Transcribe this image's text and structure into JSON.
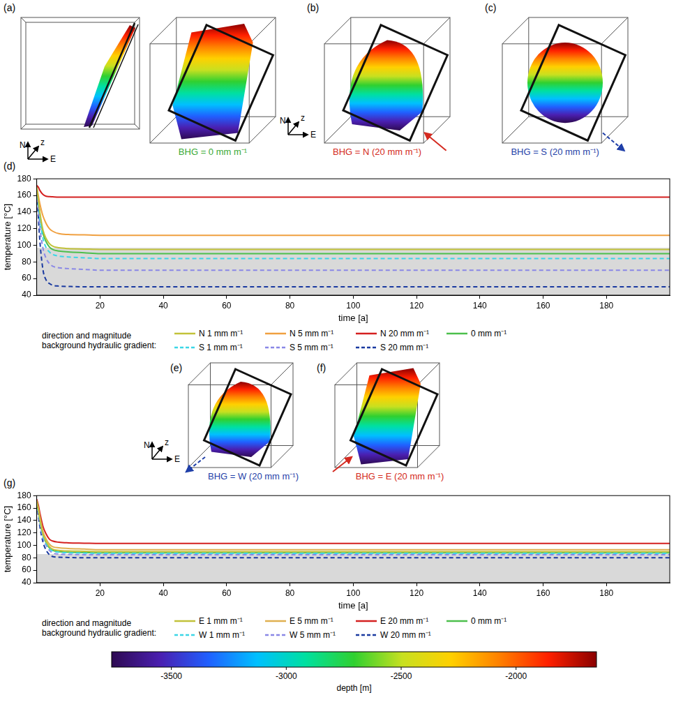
{
  "chart_data": [
    {
      "type": "line",
      "letter": "(d)",
      "x_label": "time [a]",
      "y_label": "temperature [°C]",
      "xlim": [
        0,
        200
      ],
      "xticks": [
        20,
        40,
        60,
        80,
        100,
        120,
        140,
        160,
        180
      ],
      "ylim": [
        40,
        180
      ],
      "yticks": [
        40,
        60,
        80,
        100,
        120,
        140,
        160,
        180
      ],
      "grid": false,
      "legend": "bottom",
      "legend_title": "direction and magnitude background hydraulic gradient:",
      "band": [
        40,
        97
      ],
      "band_color": "#d9d9d9",
      "x": [
        0,
        0.5,
        1,
        2,
        3,
        4,
        5,
        7,
        10,
        15,
        20,
        40,
        60,
        80,
        100,
        120,
        140,
        160,
        180,
        200
      ],
      "series": [
        {
          "name": "N 1 mm m⁻¹",
          "color": "#c2c23a",
          "line_style": "solid",
          "values": [
            170,
            155,
            140,
            118,
            108,
            102,
            99,
            97,
            96,
            95.5,
            95,
            95,
            95,
            95,
            95,
            95,
            95,
            95,
            95,
            95
          ]
        },
        {
          "name": "N 5 mm m⁻¹",
          "color": "#f0a040",
          "line_style": "solid",
          "values": [
            170,
            160,
            150,
            135,
            126,
            120,
            117,
            114,
            113,
            112.5,
            112,
            112,
            112,
            112,
            112,
            112,
            112,
            112,
            112,
            112
          ]
        },
        {
          "name": "N 20 mm m⁻¹",
          "color": "#d42020",
          "line_style": "solid",
          "values": [
            172,
            170,
            166,
            161,
            159,
            158.5,
            158.3,
            158,
            158,
            158,
            158,
            158,
            158,
            158,
            158,
            158,
            158,
            158,
            158,
            158
          ]
        },
        {
          "name": "S 1 mm m⁻¹",
          "color": "#3cd6e6",
          "line_style": "dashed",
          "values": [
            168,
            150,
            132,
            108,
            97,
            92,
            89,
            87,
            86,
            85,
            84,
            84,
            84,
            84,
            84,
            84,
            84,
            84,
            84,
            84
          ]
        },
        {
          "name": "S 5 mm m⁻¹",
          "color": "#8a88e6",
          "line_style": "dashed",
          "values": [
            165,
            145,
            122,
            96,
            84,
            78,
            75,
            73,
            72,
            71,
            70,
            70,
            70,
            70,
            70,
            70,
            70,
            70,
            70,
            70
          ]
        },
        {
          "name": "S 20 mm m⁻¹",
          "color": "#1a3aa0",
          "line_style": "dashed",
          "values": [
            162,
            135,
            105,
            70,
            58,
            54,
            52,
            51,
            50.5,
            50,
            50,
            50,
            50,
            50,
            50,
            50,
            50,
            50,
            50,
            50
          ]
        },
        {
          "name": "0 mm m⁻¹",
          "color": "#4cbf4c",
          "line_style": "solid",
          "values": [
            170,
            153,
            137,
            114,
            104,
            98,
            95,
            93,
            92,
            91,
            90,
            90,
            90,
            90,
            90,
            90,
            90,
            90,
            90,
            90
          ]
        }
      ]
    },
    {
      "type": "line",
      "letter": "(g)",
      "x_label": "time [a]",
      "y_label": "temperature [°C]",
      "xlim": [
        0,
        200
      ],
      "xticks": [
        20,
        40,
        60,
        80,
        100,
        120,
        140,
        160,
        180
      ],
      "ylim": [
        40,
        180
      ],
      "yticks": [
        40,
        60,
        80,
        100,
        120,
        140,
        160,
        180
      ],
      "grid": false,
      "legend": "bottom",
      "legend_title": "direction and magnitude background hydraulic gradient:",
      "band": [
        40,
        86
      ],
      "band_color": "#d9d9d9",
      "x": [
        0,
        0.5,
        1,
        2,
        3,
        4,
        5,
        7,
        10,
        15,
        20,
        40,
        60,
        80,
        100,
        120,
        140,
        160,
        180,
        200
      ],
      "series": [
        {
          "name": "E 1 mm m⁻¹",
          "color": "#c2c23a",
          "line_style": "solid",
          "values": [
            171,
            158,
            142,
            118,
            106,
            98,
            94,
            92,
            91,
            90.5,
            90,
            90,
            90,
            90,
            90,
            90,
            90,
            90,
            90,
            90
          ]
        },
        {
          "name": "E 5 mm m⁻¹",
          "color": "#e0b050",
          "line_style": "solid",
          "values": [
            172,
            160,
            146,
            122,
            110,
            102,
            98,
            96,
            95,
            94,
            93,
            93,
            93,
            93,
            93,
            93,
            93,
            93,
            93,
            93
          ]
        },
        {
          "name": "E 20 mm m⁻¹",
          "color": "#d42020",
          "line_style": "solid",
          "values": [
            174,
            165,
            152,
            130,
            118,
            110,
            107,
            105,
            104,
            103.5,
            103,
            103,
            103,
            103,
            103,
            103,
            103,
            103,
            103,
            103
          ]
        },
        {
          "name": "W 1 mm m⁻¹",
          "color": "#3cd6e6",
          "line_style": "dashed",
          "values": [
            170,
            155,
            139,
            115,
            103,
            95,
            91,
            89,
            88,
            87.5,
            87,
            87,
            87,
            87,
            87,
            87,
            87,
            87,
            87,
            87
          ]
        },
        {
          "name": "W 5 mm m⁻¹",
          "color": "#8a88e6",
          "line_style": "dashed",
          "values": [
            169,
            153,
            136,
            112,
            100,
            92,
            88,
            86,
            85.5,
            85,
            85,
            85,
            85,
            85,
            85,
            85,
            85,
            85,
            85,
            85
          ]
        },
        {
          "name": "W 20 mm m⁻¹",
          "color": "#1a3aa0",
          "line_style": "dashed",
          "values": [
            167,
            148,
            130,
            105,
            92,
            85,
            82,
            81,
            80.5,
            80,
            80,
            80,
            80,
            80,
            80,
            80,
            80,
            80,
            80,
            80
          ]
        },
        {
          "name": "0 mm m⁻¹",
          "color": "#4cbf4c",
          "line_style": "solid",
          "values": [
            170,
            156,
            140,
            116,
            104,
            96,
            92,
            90,
            89,
            88.5,
            88,
            88,
            88,
            88,
            88,
            88,
            88,
            88,
            88,
            88
          ]
        }
      ]
    }
  ],
  "panels": [
    {
      "letter": "(a)",
      "label": "BHG = 0 mm m⁻¹",
      "color": "#3aa935",
      "shape": "sheet",
      "top_view": true,
      "compass": true
    },
    {
      "letter": "(b)",
      "label": "BHG = N (20 mm m⁻¹)",
      "color": "#d42a20",
      "shape": "lobe",
      "arrow": "solid",
      "arrow_direction": "in",
      "arrow_side": "bottom-right",
      "compass": true
    },
    {
      "letter": "(c)",
      "label": "BHG = S (20 mm m⁻¹)",
      "color": "#1f3fa8",
      "shape": "disc",
      "arrow": "dashed",
      "arrow_direction": "out",
      "arrow_side": "bottom-right"
    },
    {
      "letter": "(e)",
      "label": "BHG = W (20 mm m⁻¹)",
      "color": "#1f3fa8",
      "shape": "lobe",
      "arrow": "dashed",
      "arrow_direction": "out",
      "arrow_side": "bottom-left",
      "compass": true
    },
    {
      "letter": "(f)",
      "label": "BHG = E (20 mm m⁻¹)",
      "color": "#d42a20",
      "shape": "sheet",
      "arrow": "solid",
      "arrow_direction": "in",
      "arrow_side": "bottom-left"
    }
  ],
  "compass_labels": [
    "N",
    "z",
    "E"
  ],
  "colorbar": {
    "label": "depth [m]",
    "range": [
      -3760,
      -1650
    ],
    "ticks": [
      -3500,
      -3000,
      -2500,
      -2000
    ],
    "colors": [
      "#2e0a52",
      "#4a1fb0",
      "#2060ff",
      "#00c0ff",
      "#00e0a0",
      "#30d030",
      "#c8e020",
      "#ffd000",
      "#ff8000",
      "#ff2000",
      "#8a0000"
    ]
  }
}
